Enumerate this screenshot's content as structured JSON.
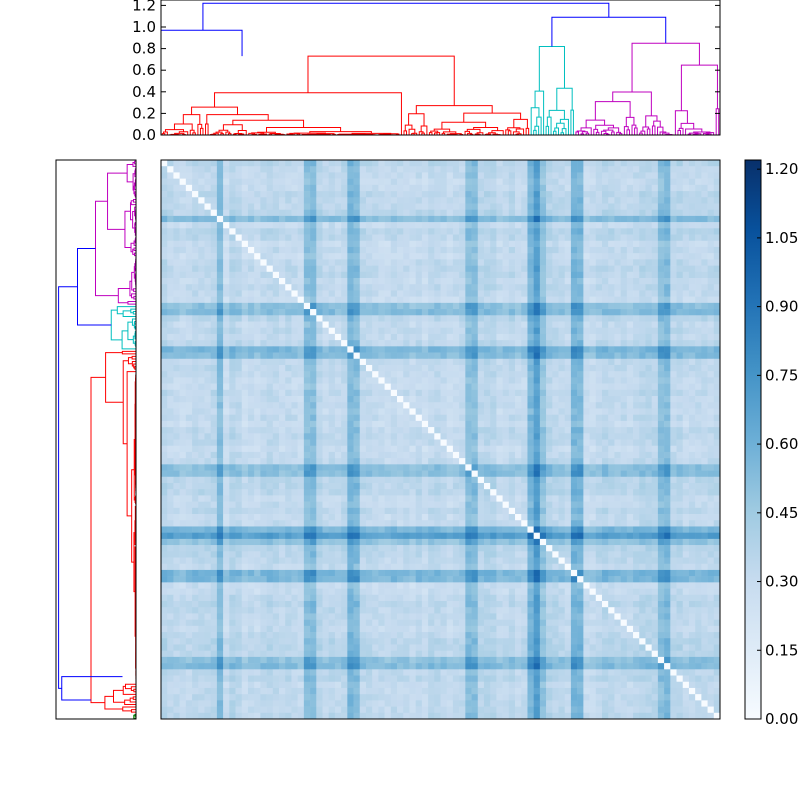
{
  "chart_data": {
    "type": "heatmap",
    "title": "",
    "description_of_panels": [
      "top-dendrogram",
      "left-dendrogram",
      "distance-heatmap",
      "colorbar"
    ],
    "top_dendrogram": {
      "ylim": [
        0.0,
        1.25
      ],
      "ticks": [
        "0.0",
        "0.2",
        "0.4",
        "0.6",
        "0.8",
        "1.0",
        "1.2"
      ],
      "tick_values": [
        0.0,
        0.2,
        0.4,
        0.6,
        0.8,
        1.0,
        1.2
      ],
      "clusters": [
        {
          "color": "#ff0000",
          "start": 0.0,
          "end": 0.66,
          "height": 0.73
        },
        {
          "color": "#00bfbf",
          "start": 0.66,
          "end": 0.74,
          "height": 0.82
        },
        {
          "color": "#bf00bf",
          "start": 0.74,
          "end": 1.0,
          "height": 0.85
        }
      ],
      "merges": [
        {
          "color": "#0000ff",
          "height": 1.22
        },
        {
          "color": "#0000ff",
          "height": 1.09
        },
        {
          "color": "#0000ff",
          "height": 0.97
        }
      ]
    },
    "left_dendrogram": {
      "clusters": [
        {
          "color": "#bf00bf",
          "start": 0.0,
          "end": 0.26
        },
        {
          "color": "#00bfbf",
          "start": 0.26,
          "end": 0.34
        },
        {
          "color": "#ff0000",
          "start": 0.34,
          "end": 0.99
        },
        {
          "color": "#008000",
          "start": 0.99,
          "end": 1.0
        }
      ]
    },
    "heatmap": {
      "colormap": [
        "#f7fbff",
        "#deebf7",
        "#c6dbef",
        "#9ecae1",
        "#6baed6",
        "#4292c6",
        "#2171b5",
        "#08519c",
        "#08306b"
      ],
      "vmin": 0.0,
      "vmax": 1.22,
      "cluster_boundaries": [
        0.265,
        0.335,
        0.55,
        0.66,
        0.74,
        0.89
      ]
    },
    "colorbar": {
      "ticks": [
        "0.00",
        "0.15",
        "0.30",
        "0.45",
        "0.60",
        "0.75",
        "0.90",
        "1.05",
        "1.20"
      ],
      "tick_values": [
        0.0,
        0.15,
        0.3,
        0.45,
        0.6,
        0.75,
        0.9,
        1.05,
        1.2
      ],
      "range": [
        0.0,
        1.22
      ]
    }
  }
}
